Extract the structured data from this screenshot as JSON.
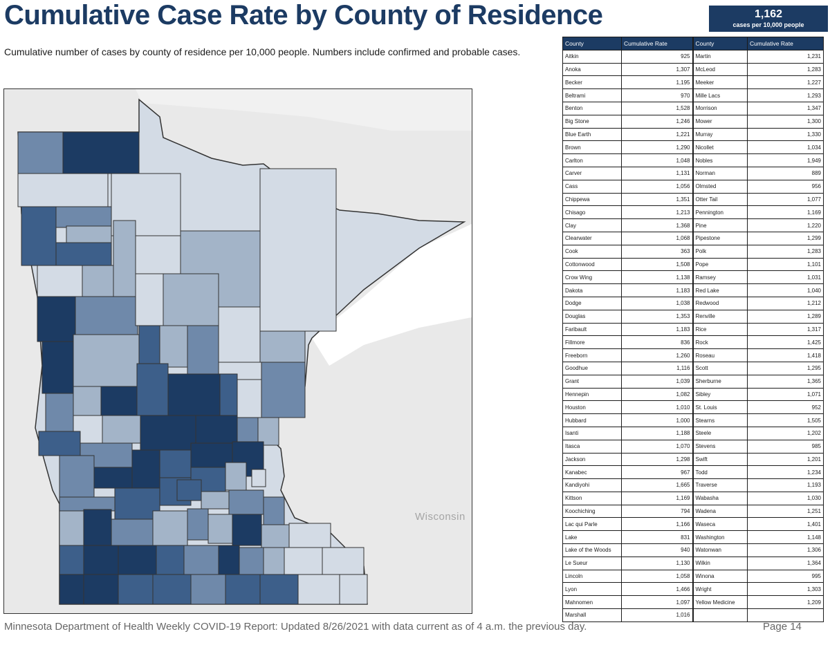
{
  "title": "Cumulative Case Rate by County of Residence",
  "badge": {
    "value": "1,162",
    "caption": "cases per 10,000 people"
  },
  "subtitle": "Cumulative number of cases by county of residence per 10,000 people. Numbers include confirmed and probable cases.",
  "map": {
    "neighbor_label": "Wisconsin",
    "colors": {
      "darkest": "#1c3b63",
      "dark": "#3d5f8a",
      "medium": "#6f89aa",
      "light": "#a3b4c8",
      "lightest": "#d3dbe5",
      "background": "#e8e8e8"
    }
  },
  "table": {
    "headers": {
      "county": "County",
      "rate": "Cumulative Rate"
    },
    "rows": [
      [
        "Aitkin",
        "925",
        "Martin",
        "1,231"
      ],
      [
        "Anoka",
        "1,307",
        "McLeod",
        "1,283"
      ],
      [
        "Becker",
        "1,195",
        "Meeker",
        "1,227"
      ],
      [
        "Beltrami",
        "970",
        "Mille Lacs",
        "1,293"
      ],
      [
        "Benton",
        "1,528",
        "Morrison",
        "1,347"
      ],
      [
        "Big Stone",
        "1,246",
        "Mower",
        "1,300"
      ],
      [
        "Blue Earth",
        "1,221",
        "Murray",
        "1,330"
      ],
      [
        "Brown",
        "1,290",
        "Nicollet",
        "1,034"
      ],
      [
        "Carlton",
        "1,048",
        "Nobles",
        "1,949"
      ],
      [
        "Carver",
        "1,131",
        "Norman",
        "889"
      ],
      [
        "Cass",
        "1,056",
        "Olmsted",
        "956"
      ],
      [
        "Chippewa",
        "1,351",
        "Otter Tail",
        "1,077"
      ],
      [
        "Chisago",
        "1,213",
        "Pennington",
        "1,169"
      ],
      [
        "Clay",
        "1,368",
        "Pine",
        "1,220"
      ],
      [
        "Clearwater",
        "1,068",
        "Pipestone",
        "1,299"
      ],
      [
        "Cook",
        "363",
        "Polk",
        "1,283"
      ],
      [
        "Cottonwood",
        "1,508",
        "Pope",
        "1,101"
      ],
      [
        "Crow Wing",
        "1,138",
        "Ramsey",
        "1,031"
      ],
      [
        "Dakota",
        "1,183",
        "Red Lake",
        "1,040"
      ],
      [
        "Dodge",
        "1,038",
        "Redwood",
        "1,212"
      ],
      [
        "Douglas",
        "1,353",
        "Renville",
        "1,289"
      ],
      [
        "Faribault",
        "1,183",
        "Rice",
        "1,317"
      ],
      [
        "Fillmore",
        "836",
        "Rock",
        "1,425"
      ],
      [
        "Freeborn",
        "1,260",
        "Roseau",
        "1,418"
      ],
      [
        "Goodhue",
        "1,116",
        "Scott",
        "1,295"
      ],
      [
        "Grant",
        "1,039",
        "Sherburne",
        "1,365"
      ],
      [
        "Hennepin",
        "1,082",
        "Sibley",
        "1,071"
      ],
      [
        "Houston",
        "1,010",
        "St. Louis",
        "952"
      ],
      [
        "Hubbard",
        "1,000",
        "Stearns",
        "1,505"
      ],
      [
        "Isanti",
        "1,188",
        "Steele",
        "1,202"
      ],
      [
        "Itasca",
        "1,070",
        "Stevens",
        "985"
      ],
      [
        "Jackson",
        "1,298",
        "Swift",
        "1,201"
      ],
      [
        "Kanabec",
        "967",
        "Todd",
        "1,234"
      ],
      [
        "Kandiyohi",
        "1,665",
        "Traverse",
        "1,193"
      ],
      [
        "Kittson",
        "1,169",
        "Wabasha",
        "1,030"
      ],
      [
        "Koochiching",
        "794",
        "Wadena",
        "1,251"
      ],
      [
        "Lac qui Parle",
        "1,166",
        "Waseca",
        "1,401"
      ],
      [
        "Lake",
        "831",
        "Washington",
        "1,148"
      ],
      [
        "Lake of the Woods",
        "940",
        "Watonwan",
        "1,306"
      ],
      [
        "Le Sueur",
        "1,130",
        "Wilkin",
        "1,364"
      ],
      [
        "Lincoln",
        "1,058",
        "Winona",
        "995"
      ],
      [
        "Lyon",
        "1,466",
        "Wright",
        "1,303"
      ],
      [
        "Mahnomen",
        "1,097",
        "Yellow Medicine",
        "1,209"
      ],
      [
        "Marshall",
        "1,016",
        "",
        ""
      ]
    ]
  },
  "footer": "Minnesota Department of Health Weekly COVID-19 Report: Updated 8/26/2021 with data current as of 4 a.m. the previous day.",
  "page": "Page 14"
}
